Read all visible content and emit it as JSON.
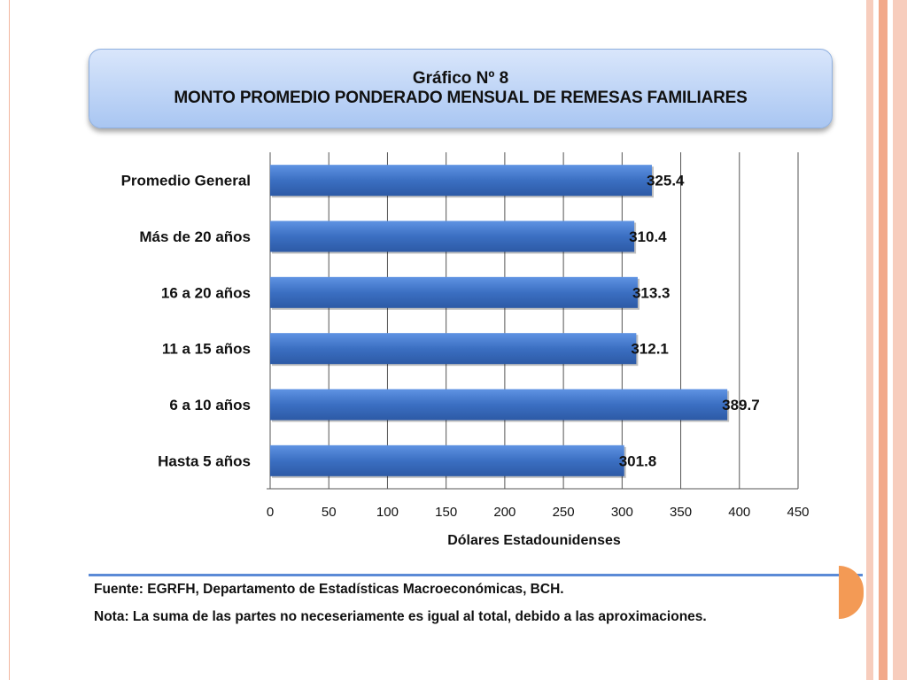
{
  "title": {
    "line1": "Gráfico Nº 8",
    "line2": "MONTO PROMEDIO PONDERADO MENSUAL DE REMESAS FAMILIARES"
  },
  "chart_data": {
    "type": "bar",
    "orientation": "horizontal",
    "categories": [
      "Promedio General",
      "Más de 20 años",
      "16 a 20 años",
      "11 a 15 años",
      "6 a 10 años",
      "Hasta 5 años"
    ],
    "values": [
      325.4,
      310.4,
      313.3,
      312.1,
      389.7,
      301.8
    ],
    "value_labels": [
      "325.4",
      "310.4",
      "313.3",
      "312.1",
      "389.7",
      "301.8"
    ],
    "xlabel": "Dólares Estadounidenses",
    "ylabel": "",
    "xlim": [
      0,
      450
    ],
    "xticks": [
      "0",
      "50",
      "100",
      "150",
      "200",
      "250",
      "300",
      "350",
      "400",
      "450"
    ],
    "grid": true,
    "colors": {
      "bar": "#3b6fc2",
      "bar_light": "#5b8fe0",
      "grid": "#555555"
    }
  },
  "footer": {
    "source": "Fuente: EGRFH, Departamento de Estadísticas Macroeconómicas, BCH.",
    "note": "Nota: La suma de las partes no neceseriamente es igual al total, debido a las aproximaciones."
  },
  "theme": {
    "frame_colors": [
      "#f7cdbd",
      "#ffffff",
      "#f2a98a",
      "#ffffff",
      "#f7cdbd"
    ],
    "accent": "#f39a55",
    "rule": "#5b8ad6"
  }
}
